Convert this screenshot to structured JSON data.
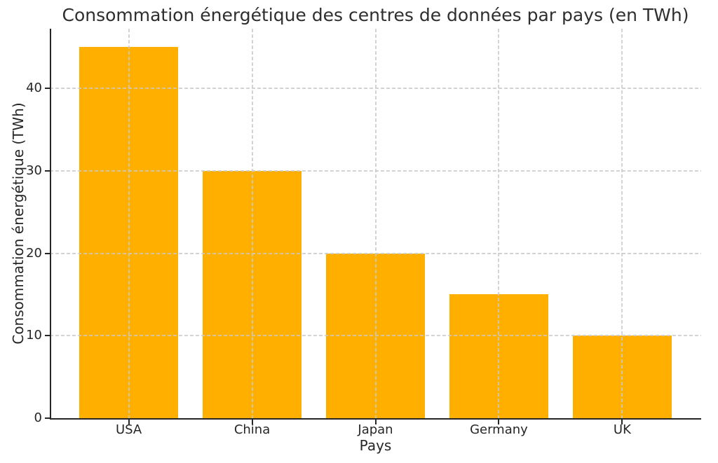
{
  "figure": {
    "background": "#ffffff"
  },
  "chart_data": {
    "type": "bar",
    "title": "Consommation énergétique des centres de données par pays (en TWh)",
    "xlabel": "Pays",
    "ylabel": "Consommation énergétique (TWh)",
    "categories": [
      "USA",
      "China",
      "Japan",
      "Germany",
      "UK"
    ],
    "values": [
      45,
      30,
      20,
      15,
      10
    ],
    "bar_color": "#FFAF00",
    "bar_width_fraction": 0.8,
    "ylim": [
      0,
      47.25
    ],
    "yticks": [
      0,
      10,
      20,
      30,
      40
    ],
    "grid": true,
    "grid_line_style": "dashed",
    "grid_color": "#d2d2d2",
    "grid_above_bars": true,
    "legend_position": "none",
    "text_color": "#262626",
    "spine_color": "#262626",
    "spines_visible": [
      "left",
      "bottom"
    ]
  }
}
